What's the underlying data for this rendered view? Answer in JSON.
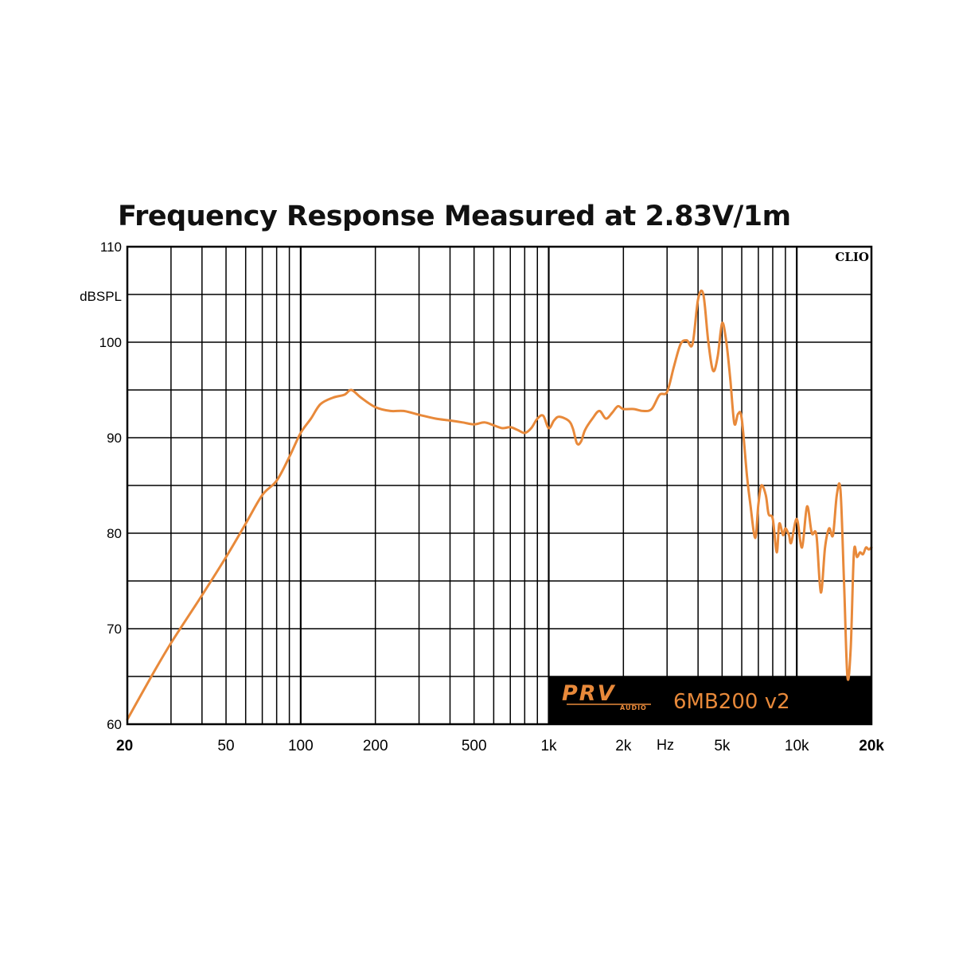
{
  "chart_data": {
    "type": "line",
    "title": "Frequency Response Measured at 2.83V/1m",
    "xlabel": "Hz",
    "ylabel": "dBSPL",
    "x_scale": "log",
    "xlim": [
      20,
      20000
    ],
    "ylim": [
      60,
      110
    ],
    "grid": true,
    "x_ticks": [
      {
        "value": 20,
        "label": "20"
      },
      {
        "value": 50,
        "label": "50"
      },
      {
        "value": 100,
        "label": "100"
      },
      {
        "value": 200,
        "label": "200"
      },
      {
        "value": 500,
        "label": "500"
      },
      {
        "value": 1000,
        "label": "1k"
      },
      {
        "value": 2000,
        "label": "2k"
      },
      {
        "value": 5000,
        "label": "5k"
      },
      {
        "value": 10000,
        "label": "10k"
      },
      {
        "value": 20000,
        "label": "20k"
      }
    ],
    "y_ticks": [
      {
        "value": 60,
        "label": "60"
      },
      {
        "value": 70,
        "label": "70"
      },
      {
        "value": 80,
        "label": "80"
      },
      {
        "value": 90,
        "label": "90"
      },
      {
        "value": 100,
        "label": "100"
      },
      {
        "value": 110,
        "label": "110"
      }
    ],
    "series": [
      {
        "color": "#e8893a",
        "x": [
          20,
          25,
          30,
          40,
          50,
          60,
          70,
          80,
          90,
          100,
          110,
          120,
          135,
          150,
          160,
          175,
          200,
          230,
          260,
          300,
          350,
          400,
          450,
          500,
          550,
          600,
          650,
          700,
          750,
          800,
          850,
          900,
          950,
          1000,
          1050,
          1100,
          1200,
          1250,
          1300,
          1350,
          1400,
          1500,
          1600,
          1700,
          1800,
          1900,
          2000,
          2200,
          2400,
          2600,
          2800,
          3000,
          3200,
          3400,
          3600,
          3800,
          4000,
          4200,
          4400,
          4600,
          4800,
          5000,
          5200,
          5400,
          5600,
          5800,
          6000,
          6300,
          6500,
          6800,
          7000,
          7200,
          7500,
          7700,
          8000,
          8300,
          8500,
          8800,
          9000,
          9300,
          9500,
          10000,
          10500,
          11000,
          11500,
          12000,
          12500,
          13000,
          13500,
          14000,
          14500,
          15000,
          15500,
          16000,
          16500,
          17000,
          17500,
          18000,
          18500,
          19000,
          19500,
          20000
        ],
        "y": [
          60.5,
          65,
          68.5,
          73.5,
          77.5,
          81,
          84,
          85.5,
          88,
          90.5,
          92,
          93.5,
          94.2,
          94.5,
          95,
          94.2,
          93.2,
          92.8,
          92.8,
          92.4,
          92.0,
          91.8,
          91.6,
          91.4,
          91.6,
          91.3,
          91.0,
          91.1,
          90.8,
          90.5,
          91.0,
          92.0,
          92.3,
          91.0,
          91.8,
          92.2,
          91.8,
          91.0,
          89.4,
          89.6,
          90.8,
          92.0,
          92.8,
          92.0,
          92.6,
          93.3,
          93.0,
          93.0,
          92.8,
          93.0,
          94.5,
          94.8,
          97.5,
          99.8,
          100.2,
          99.8,
          104.5,
          105.0,
          100.0,
          97.0,
          98.5,
          102.0,
          100.0,
          96.0,
          91.5,
          92.5,
          92.0,
          86.0,
          83.0,
          79.5,
          83.0,
          85.0,
          84.0,
          82.0,
          81.5,
          78.0,
          81.0,
          79.8,
          80.5,
          79.8,
          79.0,
          81.5,
          78.5,
          82.8,
          80.0,
          79.8,
          73.8,
          78.5,
          80.5,
          79.8,
          84.0,
          84.5,
          75.0,
          65.0,
          68.0,
          78.0,
          77.5,
          78.0,
          77.8,
          78.5,
          78.3,
          78.5
        ]
      }
    ],
    "annotations": {
      "watermark": "CLIO",
      "brand": "PRV",
      "brand_sub": "AUDIO",
      "model": "6MB200 v2"
    }
  }
}
